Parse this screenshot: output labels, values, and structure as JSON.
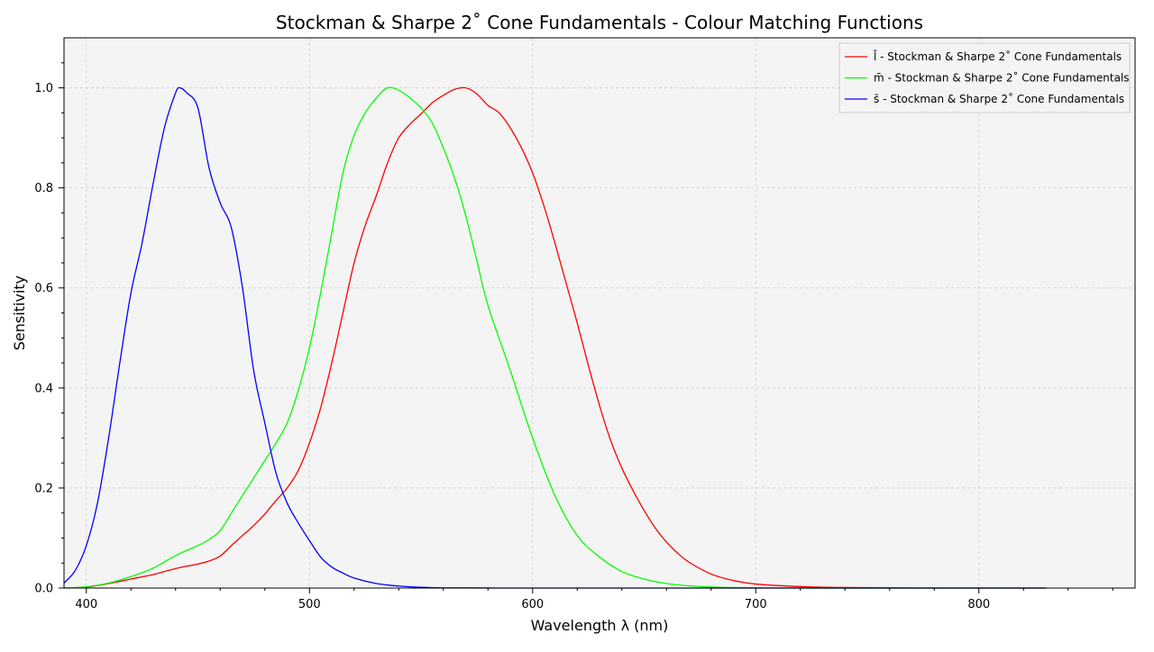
{
  "chart_data": {
    "type": "line",
    "title": "Stockman & Sharpe 2$^\\circ$ Cone Fundamentals - Colour Matching Functions",
    "title_display": "Stockman & Sharpe 2˚ Cone Fundamentals - Colour Matching Functions",
    "xlabel": "Wavelength λ (nm)",
    "ylabel": "Sensitivity",
    "xlim": [
      390,
      870
    ],
    "ylim": [
      0,
      1.1
    ],
    "xticks": [
      400,
      500,
      600,
      700,
      800
    ],
    "yticks": [
      0.0,
      0.2,
      0.4,
      0.6,
      0.8,
      1.0
    ],
    "ytick_labels": [
      "0.0",
      "0.2",
      "0.4",
      "0.6",
      "0.8",
      "1.0"
    ],
    "grid": true,
    "legend_position": "top-right",
    "background_color": "#f4f4f4",
    "series": [
      {
        "name": "l̄ - Stockman & Sharpe 2˚ Cone Fundamentals",
        "color": "#ff0000",
        "x": [
          390,
          400,
          410,
          420,
          430,
          440,
          450,
          455,
          460,
          465,
          470,
          475,
          480,
          485,
          490,
          495,
          500,
          505,
          510,
          515,
          520,
          525,
          530,
          535,
          540,
          545,
          550,
          555,
          560,
          565,
          570,
          575,
          580,
          585,
          590,
          595,
          600,
          605,
          610,
          615,
          620,
          625,
          630,
          635,
          640,
          645,
          650,
          655,
          660,
          665,
          670,
          680,
          690,
          700,
          720,
          740,
          780,
          830
        ],
        "values": [
          0.0004,
          0.002,
          0.009,
          0.018,
          0.027,
          0.039,
          0.048,
          0.054,
          0.064,
          0.085,
          0.105,
          0.125,
          0.148,
          0.175,
          0.2,
          0.235,
          0.29,
          0.36,
          0.45,
          0.55,
          0.65,
          0.725,
          0.785,
          0.85,
          0.9,
          0.927,
          0.948,
          0.97,
          0.985,
          0.997,
          1.0,
          0.988,
          0.965,
          0.95,
          0.92,
          0.88,
          0.83,
          0.765,
          0.69,
          0.61,
          0.53,
          0.445,
          0.365,
          0.295,
          0.24,
          0.195,
          0.155,
          0.12,
          0.092,
          0.07,
          0.052,
          0.028,
          0.015,
          0.008,
          0.003,
          0.001,
          0.0,
          0.0
        ]
      },
      {
        "name": "m̄ - Stockman & Sharpe 2˚ Cone Fundamentals",
        "color": "#00ff00",
        "x": [
          390,
          400,
          410,
          420,
          430,
          440,
          450,
          455,
          460,
          465,
          470,
          475,
          480,
          485,
          490,
          495,
          500,
          505,
          510,
          515,
          520,
          525,
          530,
          535,
          540,
          545,
          550,
          555,
          560,
          565,
          570,
          575,
          580,
          590,
          600,
          610,
          620,
          630,
          640,
          650,
          660,
          670,
          680,
          700,
          720,
          760,
          830
        ],
        "values": [
          0.0004,
          0.0025,
          0.01,
          0.023,
          0.04,
          0.065,
          0.085,
          0.097,
          0.115,
          0.15,
          0.185,
          0.22,
          0.255,
          0.29,
          0.33,
          0.395,
          0.48,
          0.59,
          0.71,
          0.83,
          0.905,
          0.95,
          0.98,
          1.0,
          0.995,
          0.98,
          0.96,
          0.93,
          0.88,
          0.82,
          0.745,
          0.655,
          0.565,
          0.435,
          0.3,
          0.185,
          0.105,
          0.062,
          0.033,
          0.018,
          0.009,
          0.0045,
          0.002,
          0.0005,
          0.0001,
          0.0,
          0.0
        ]
      },
      {
        "name": "s̄ - Stockman & Sharpe 2˚ Cone Fundamentals",
        "color": "#0000ff",
        "x": [
          390,
          395,
          400,
          405,
          410,
          415,
          420,
          425,
          430,
          435,
          440,
          442,
          445,
          450,
          455,
          460,
          465,
          470,
          475,
          480,
          485,
          490,
          495,
          500,
          505,
          510,
          515,
          520,
          530,
          540,
          550,
          560,
          580,
          615,
          830
        ],
        "values": [
          0.01,
          0.035,
          0.085,
          0.17,
          0.3,
          0.45,
          0.59,
          0.69,
          0.81,
          0.92,
          0.99,
          1.0,
          0.99,
          0.96,
          0.84,
          0.77,
          0.72,
          0.6,
          0.435,
          0.33,
          0.23,
          0.17,
          0.13,
          0.095,
          0.062,
          0.042,
          0.03,
          0.02,
          0.009,
          0.004,
          0.0015,
          0.0005,
          0.0001,
          0.0,
          0.0
        ]
      }
    ]
  }
}
